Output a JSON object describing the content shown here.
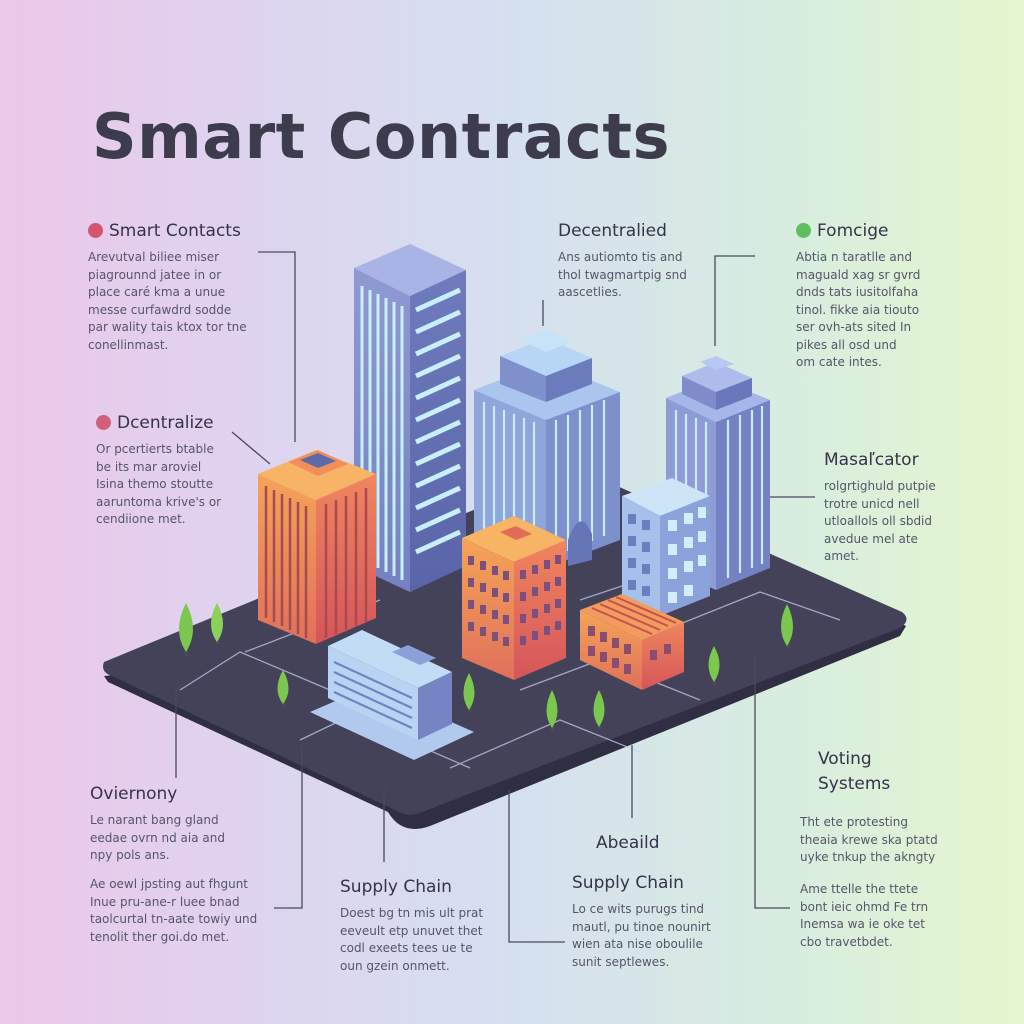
{
  "title": "Smart Contracts",
  "colors": {
    "dot_red": "#d4566e",
    "dot_pink": "#d0607a",
    "dot_green": "#5fbf5e",
    "platform": "#3f3e55",
    "tree": "#7cc84e",
    "connector": "#4a4a5c"
  },
  "callouts": {
    "smart_contracts": {
      "heading": "Smart Contacts",
      "lines": [
        "Arevutval biliee miser",
        "piagrounnd jatee in or",
        "place caré kma a unue",
        "messe curfawdrd sodde",
        "par wality tais ktox tor tne",
        "conellinmast."
      ]
    },
    "decentralied": {
      "heading": "Decentralied",
      "lines": [
        "Ans autiomto tis and",
        "thol twagmartpig snd",
        "aascetlies."
      ]
    },
    "fomcige": {
      "heading": "Fomcige",
      "lines": [
        "Abtia n taratlle and",
        "maguald xag sr gvrd",
        "dnds tats iusitolfaha",
        "tinol. fikke aia tiouto",
        "ser ovh-ats sited In",
        "pikes all osd und",
        "om cate intes."
      ]
    },
    "dcentralize": {
      "heading": "Dcentralize",
      "lines": [
        "Or pcertierts btable",
        "be its mar aroviel",
        "Isina themo stoutte",
        "aaruntoma krive's or",
        "cendiione met."
      ]
    },
    "masalcator": {
      "heading": "Masaľcator",
      "lines": [
        "rolgrtighuld putpie",
        "trotre unicd nell",
        "utloallols oll sbdid",
        "avedue mel ate",
        "amet."
      ]
    },
    "oviernony": {
      "heading": "Oviernony",
      "lines": [
        "Le narant bang gland",
        "eedae ovrn nd aia and",
        "npy pols ans."
      ]
    },
    "bottom_left": {
      "lines": [
        "Ae oewl jpsting aut fhgunt",
        "Inue pru-ane-r luee bnad",
        "taolcurtal tn-aate towiy und",
        "tenolit ther goi.do met."
      ]
    },
    "supply_chain_1": {
      "heading": "Supply Chain",
      "lines": [
        "Doest bg tn mis ult prat",
        "eeveult etp unuvet thet",
        "codl exeets tees ue te",
        "oun gzein onmett."
      ]
    },
    "abeaud": {
      "heading": "Abeaild"
    },
    "supply_chain_2": {
      "heading": "Supply Chain",
      "lines": [
        "Lo ce wits purugs tind",
        "mautl, pu tinoe nounirt",
        "wien ata nise oboulile",
        "sunit septlewes."
      ]
    },
    "voting": {
      "heading": "Voting Systems",
      "lines": [
        "Tht ete protesting",
        "theaia krewe ska ptatd",
        "uyke tnkup the akngty"
      ]
    },
    "bottom_right": {
      "lines": [
        "Ame ttelle the ttete",
        "bont ieic ohmd Fe trn",
        "Inemsa wa ie oke tet",
        "cbo travetbdet."
      ]
    }
  }
}
